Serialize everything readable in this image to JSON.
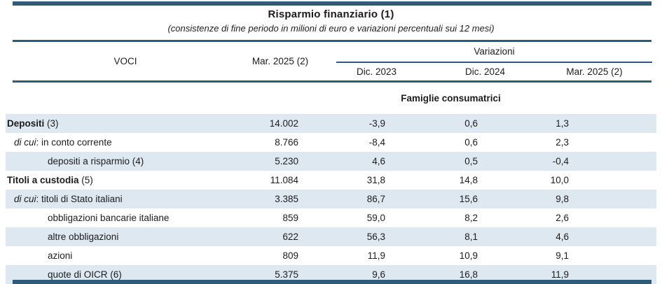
{
  "colors": {
    "accent": "#2d5b79",
    "row_alt": "#dde8f1",
    "text": "#1c1c1c"
  },
  "title": "Risparmio finanziario (1)",
  "subtitle": "(consistenze di fine periodo in milioni di euro e variazioni percentuali sui 12 mesi)",
  "header": {
    "voci": "VOCI",
    "stock_col": "Mar. 2025 (2)",
    "group": "Variazioni",
    "variation_cols": [
      "Dic. 2023",
      "Dic. 2024",
      "Mar. 2025 (2)"
    ]
  },
  "section": "Famiglie consumatrici",
  "rows": [
    {
      "label_prefix": "Depositi",
      "label_suffix": " (3)",
      "style": "bold",
      "shaded": true,
      "values": [
        "14.002",
        "-3,9",
        "0,6",
        "1,3"
      ]
    },
    {
      "label_prefix": "di cui",
      "label_suffix": ": in conto corrente",
      "style": "dicui",
      "shaded": false,
      "values": [
        "8.766",
        "-8,4",
        "0,6",
        "2,3"
      ]
    },
    {
      "label_prefix": "",
      "label_suffix": "depositi a risparmio (4)",
      "style": "sub",
      "shaded": true,
      "values": [
        "5.230",
        "4,6",
        "0,5",
        "-0,4"
      ]
    },
    {
      "label_prefix": "Titoli a custodia",
      "label_suffix": " (5)",
      "style": "bold",
      "shaded": false,
      "values": [
        "11.084",
        "31,8",
        "14,8",
        "10,0"
      ]
    },
    {
      "label_prefix": "di cui",
      "label_suffix": ": titoli di Stato italiani",
      "style": "dicui",
      "shaded": true,
      "values": [
        "3.385",
        "86,7",
        "15,6",
        "9,8"
      ]
    },
    {
      "label_prefix": "",
      "label_suffix": "obbligazioni bancarie italiane",
      "style": "sub",
      "shaded": false,
      "values": [
        "859",
        "59,0",
        "8,2",
        "2,6"
      ]
    },
    {
      "label_prefix": "",
      "label_suffix": "altre obbligazioni",
      "style": "sub",
      "shaded": true,
      "values": [
        "622",
        "56,3",
        "8,1",
        "4,6"
      ]
    },
    {
      "label_prefix": "",
      "label_suffix": "azioni",
      "style": "sub",
      "shaded": false,
      "values": [
        "809",
        "11,9",
        "10,9",
        "9,1"
      ]
    },
    {
      "label_prefix": "",
      "label_suffix": "quote di OICR (6)",
      "style": "sub",
      "shaded": true,
      "values": [
        "5.375",
        "9,6",
        "16,8",
        "11,9"
      ]
    }
  ]
}
